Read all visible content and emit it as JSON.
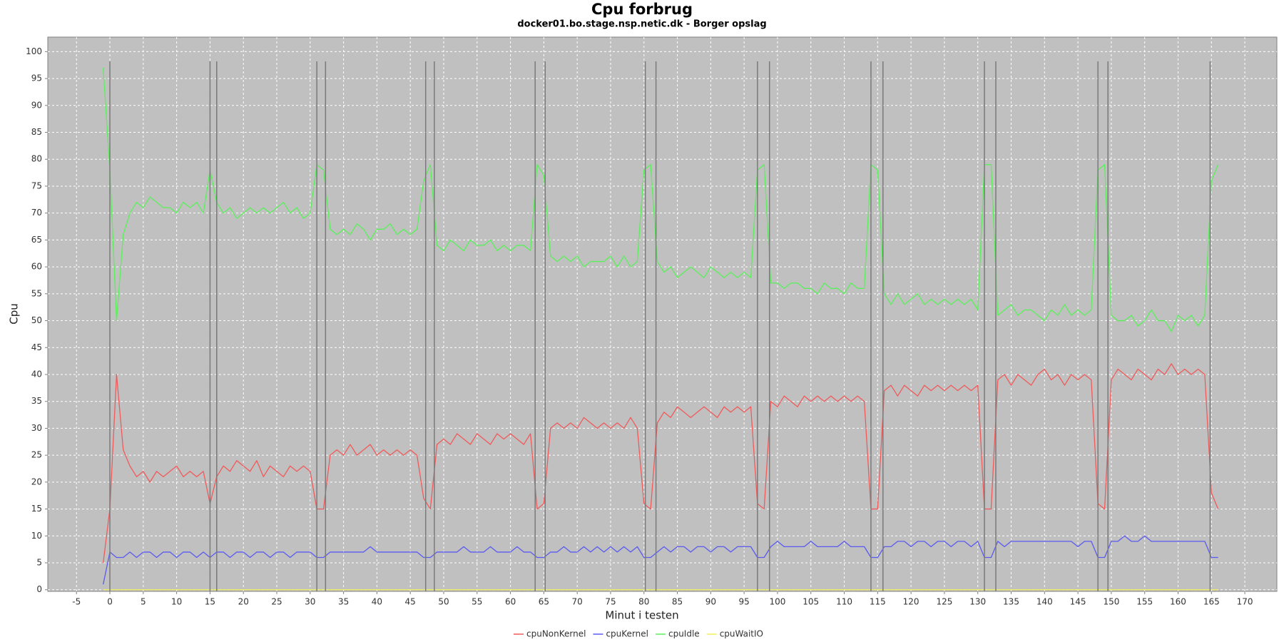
{
  "chart_data": {
    "type": "line",
    "title": "Cpu forbrug",
    "subtitle": "docker01.bo.stage.nsp.netic.dk - Borger opslag",
    "x_label": "Minut i testen",
    "y_label": "Cpu",
    "xlim": [
      -9.3,
      174.8
    ],
    "ylim": [
      -0.3,
      102.7
    ],
    "xticks": [
      -5,
      0,
      5,
      10,
      15,
      20,
      25,
      30,
      35,
      40,
      45,
      50,
      55,
      60,
      65,
      70,
      75,
      80,
      85,
      90,
      95,
      100,
      105,
      110,
      115,
      120,
      125,
      130,
      135,
      140,
      145,
      150,
      155,
      160,
      165,
      170
    ],
    "yticks": [
      0,
      5,
      10,
      15,
      20,
      25,
      30,
      35,
      40,
      45,
      50,
      55,
      60,
      65,
      70,
      75,
      80,
      85,
      90,
      95,
      100
    ],
    "grid": true,
    "legend": "bottom",
    "markers": [
      0,
      15,
      16,
      31,
      32.3,
      47.3,
      48.6,
      63.7,
      65.2,
      80.2,
      81.8,
      97,
      98.8,
      114,
      115.8,
      131,
      132.7,
      148,
      149.5,
      164.8
    ],
    "marker_color": "#7a7a7a",
    "x": [
      -1,
      0,
      1,
      2,
      3,
      4,
      5,
      6,
      7,
      8,
      9,
      10,
      11,
      12,
      13,
      14,
      15,
      16,
      17,
      18,
      19,
      20,
      21,
      22,
      23,
      24,
      25,
      26,
      27,
      28,
      29,
      30,
      31,
      32,
      33,
      34,
      35,
      36,
      37,
      38,
      39,
      40,
      41,
      42,
      43,
      44,
      45,
      46,
      47,
      48,
      49,
      50,
      51,
      52,
      53,
      54,
      55,
      56,
      57,
      58,
      59,
      60,
      61,
      62,
      63,
      64,
      65,
      66,
      67,
      68,
      69,
      70,
      71,
      72,
      73,
      74,
      75,
      76,
      77,
      78,
      79,
      80,
      81,
      82,
      83,
      84,
      85,
      86,
      87,
      88,
      89,
      90,
      91,
      92,
      93,
      94,
      95,
      96,
      97,
      98,
      99,
      100,
      101,
      102,
      103,
      104,
      105,
      106,
      107,
      108,
      109,
      110,
      111,
      112,
      113,
      114,
      115,
      116,
      117,
      118,
      119,
      120,
      121,
      122,
      123,
      124,
      125,
      126,
      127,
      128,
      129,
      130,
      131,
      132,
      133,
      134,
      135,
      136,
      137,
      138,
      139,
      140,
      141,
      142,
      143,
      144,
      145,
      146,
      147,
      148,
      149,
      150,
      151,
      152,
      153,
      154,
      155,
      156,
      157,
      158,
      159,
      160,
      161,
      162,
      163,
      164,
      165,
      166
    ],
    "series": [
      {
        "name": "cpuNonKernel",
        "color": "#f05a5a",
        "values": [
          5,
          15,
          40,
          26,
          23,
          21,
          22,
          20,
          22,
          21,
          22,
          23,
          21,
          22,
          21,
          22,
          16,
          21,
          23,
          22,
          24,
          23,
          22,
          24,
          21,
          23,
          22,
          21,
          23,
          22,
          23,
          22,
          15,
          15,
          25,
          26,
          25,
          27,
          25,
          26,
          27,
          25,
          26,
          25,
          26,
          25,
          26,
          25,
          17,
          15,
          27,
          28,
          27,
          29,
          28,
          27,
          29,
          28,
          27,
          29,
          28,
          29,
          28,
          27,
          29,
          15,
          16,
          30,
          31,
          30,
          31,
          30,
          32,
          31,
          30,
          31,
          30,
          31,
          30,
          32,
          30,
          16,
          15,
          31,
          33,
          32,
          34,
          33,
          32,
          33,
          34,
          33,
          32,
          34,
          33,
          34,
          33,
          34,
          16,
          15,
          35,
          34,
          36,
          35,
          34,
          36,
          35,
          36,
          35,
          36,
          35,
          36,
          35,
          36,
          35,
          15,
          15,
          37,
          38,
          36,
          38,
          37,
          36,
          38,
          37,
          38,
          37,
          38,
          37,
          38,
          37,
          38,
          15,
          15,
          39,
          40,
          38,
          40,
          39,
          38,
          40,
          41,
          39,
          40,
          38,
          40,
          39,
          40,
          39,
          16,
          15,
          39,
          41,
          40,
          39,
          41,
          40,
          39,
          41,
          40,
          42,
          40,
          41,
          40,
          41,
          40,
          18,
          15
        ]
      },
      {
        "name": "cpuKernel",
        "color": "#5a5af0",
        "values": [
          1,
          7,
          6,
          6,
          7,
          6,
          7,
          7,
          6,
          7,
          7,
          6,
          7,
          7,
          6,
          7,
          6,
          7,
          7,
          6,
          7,
          7,
          6,
          7,
          7,
          6,
          7,
          7,
          6,
          7,
          7,
          7,
          6,
          6,
          7,
          7,
          7,
          7,
          7,
          7,
          8,
          7,
          7,
          7,
          7,
          7,
          7,
          7,
          6,
          6,
          7,
          7,
          7,
          7,
          8,
          7,
          7,
          7,
          8,
          7,
          7,
          7,
          8,
          7,
          7,
          6,
          6,
          7,
          7,
          8,
          7,
          7,
          8,
          7,
          8,
          7,
          8,
          7,
          8,
          7,
          8,
          6,
          6,
          7,
          8,
          7,
          8,
          8,
          7,
          8,
          8,
          7,
          8,
          8,
          7,
          8,
          8,
          8,
          6,
          6,
          8,
          9,
          8,
          8,
          8,
          8,
          9,
          8,
          8,
          8,
          8,
          9,
          8,
          8,
          8,
          6,
          6,
          8,
          8,
          9,
          9,
          8,
          9,
          9,
          8,
          9,
          9,
          8,
          9,
          9,
          8,
          9,
          6,
          6,
          9,
          8,
          9,
          9,
          9,
          9,
          9,
          9,
          9,
          9,
          9,
          9,
          8,
          9,
          9,
          6,
          6,
          9,
          9,
          10,
          9,
          9,
          10,
          9,
          9,
          9,
          9,
          9,
          9,
          9,
          9,
          9,
          6,
          6
        ]
      },
      {
        "name": "cpuIdle",
        "color": "#5af05a",
        "values": [
          97,
          78,
          50,
          66,
          70,
          72,
          71,
          73,
          72,
          71,
          71,
          70,
          72,
          71,
          72,
          70,
          78,
          72,
          70,
          71,
          69,
          70,
          71,
          70,
          71,
          70,
          71,
          72,
          70,
          71,
          69,
          70,
          79,
          78,
          67,
          66,
          67,
          66,
          68,
          67,
          65,
          67,
          67,
          68,
          66,
          67,
          66,
          67,
          76,
          79,
          64,
          63,
          65,
          64,
          63,
          65,
          64,
          64,
          65,
          63,
          64,
          63,
          64,
          64,
          63,
          79,
          77,
          62,
          61,
          62,
          61,
          62,
          60,
          61,
          61,
          61,
          62,
          60,
          62,
          60,
          61,
          78,
          79,
          61,
          59,
          60,
          58,
          59,
          60,
          59,
          58,
          60,
          59,
          58,
          59,
          58,
          59,
          58,
          78,
          79,
          57,
          57,
          56,
          57,
          57,
          56,
          56,
          55,
          57,
          56,
          56,
          55,
          57,
          56,
          56,
          79,
          78,
          55,
          53,
          55,
          53,
          54,
          55,
          53,
          54,
          53,
          54,
          53,
          54,
          53,
          54,
          52,
          79,
          79,
          51,
          52,
          53,
          51,
          52,
          52,
          51,
          50,
          52,
          51,
          53,
          51,
          52,
          51,
          52,
          78,
          79,
          51,
          50,
          50,
          51,
          49,
          50,
          52,
          50,
          50,
          48,
          51,
          50,
          51,
          49,
          51,
          76,
          79
        ]
      },
      {
        "name": "cpuWaitIO",
        "color": "#f0f05a",
        "values": [
          0,
          0,
          0,
          0,
          0,
          0,
          0,
          0,
          0,
          0,
          0,
          0,
          0,
          0,
          0,
          0,
          0,
          0,
          0,
          0,
          0,
          0,
          0,
          0,
          0,
          0,
          0,
          0,
          0,
          0,
          0,
          0,
          0,
          0,
          0,
          0,
          0,
          0,
          0,
          0,
          0,
          0,
          0,
          0,
          0,
          0,
          0,
          0,
          0,
          0,
          0,
          0,
          0,
          0,
          0,
          0,
          0,
          0,
          0,
          0,
          0,
          0,
          0,
          0,
          0,
          0,
          0,
          0,
          0,
          0,
          0,
          0,
          0,
          0,
          0,
          0,
          0,
          0,
          0,
          0,
          0,
          0,
          0,
          0,
          0,
          0,
          0,
          0,
          0,
          0,
          0,
          0,
          0,
          0,
          0,
          0,
          0,
          0,
          0,
          0,
          0,
          0,
          0,
          0,
          0,
          0,
          0,
          0,
          0,
          0,
          0,
          0,
          0,
          0,
          0,
          0,
          0,
          0,
          0,
          0,
          0,
          0,
          0,
          0,
          0,
          0,
          0,
          0,
          0,
          0,
          0,
          0,
          0,
          0,
          0,
          0,
          0,
          0,
          0,
          0,
          0,
          0,
          0,
          0,
          0,
          0,
          0,
          0,
          0,
          0,
          0,
          0,
          0,
          0,
          0,
          0,
          0,
          0,
          0,
          0,
          0,
          0,
          0,
          0,
          0,
          0,
          0,
          0
        ]
      }
    ]
  }
}
